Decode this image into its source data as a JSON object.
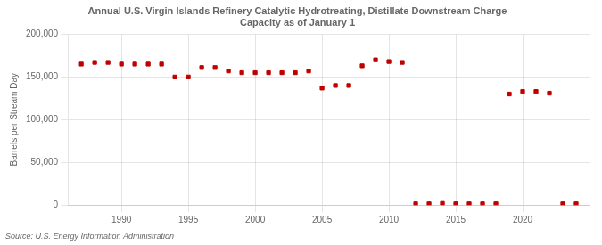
{
  "chart_data": {
    "type": "scatter",
    "title": "Annual U.S. Virgin Islands Refinery Catalytic Hydrotreating, Distillate Downstream Charge\nCapacity as of January 1",
    "ylabel": "Barrels per Stream Day",
    "source": "Source: U.S. Energy Information Administration",
    "color": "#c00000",
    "marker": "square",
    "x": [
      1987,
      1988,
      1989,
      1990,
      1991,
      1992,
      1993,
      1994,
      1995,
      1996,
      1997,
      1998,
      1999,
      2000,
      2001,
      2002,
      2003,
      2004,
      2005,
      2006,
      2007,
      2008,
      2009,
      2010,
      2011,
      2012,
      2013,
      2014,
      2015,
      2016,
      2017,
      2018,
      2019,
      2020,
      2021,
      2022,
      2023,
      2024
    ],
    "values": [
      165000,
      167000,
      167000,
      165000,
      165000,
      165000,
      165000,
      150000,
      150000,
      161000,
      161000,
      157000,
      155000,
      155000,
      155000,
      155000,
      155000,
      157000,
      137000,
      140000,
      140000,
      163000,
      170000,
      168000,
      167000,
      1500,
      1500,
      2000,
      1500,
      1500,
      1500,
      1500,
      130000,
      133000,
      133000,
      131000,
      1500,
      1500
    ],
    "xlim": [
      1986,
      2025
    ],
    "xticks": [
      1990,
      1995,
      2000,
      2005,
      2010,
      2015,
      2020
    ],
    "ylim": [
      0,
      200000
    ],
    "yticks": [
      0,
      {
        "value": 50000,
        "label": "50,000"
      },
      {
        "value": 100000,
        "label": "100,000"
      },
      {
        "value": 150000,
        "label": "150,000"
      },
      {
        "value": 200000,
        "label": "200,000"
      }
    ],
    "grid": true
  }
}
